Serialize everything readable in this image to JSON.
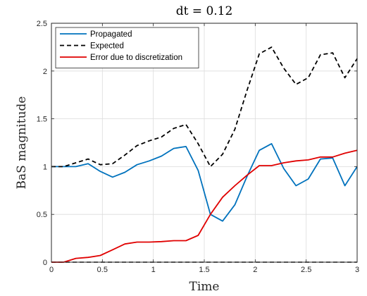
{
  "chart_data": {
    "type": "line",
    "title": "dt = 0.12",
    "xlabel": "Time",
    "ylabel": "BaS magnitude",
    "xlim": [
      0,
      3
    ],
    "ylim": [
      0,
      2.5
    ],
    "xticks": [
      0,
      0.5,
      1,
      1.5,
      2,
      2.5,
      3
    ],
    "xtick_labels": [
      "0",
      "0.5",
      "1",
      "1.5",
      "2",
      "2.5",
      "3"
    ],
    "yticks": [
      0,
      0.5,
      1,
      1.5,
      2,
      2.5
    ],
    "ytick_labels": [
      "0",
      "0.5",
      "1",
      "1.5",
      "2",
      "2.5"
    ],
    "grid": true,
    "legend_position": "top-left",
    "series": [
      {
        "name": "Propagated",
        "color": "#0072BD",
        "style": "solid",
        "x": [
          0,
          0.12,
          0.24,
          0.36,
          0.48,
          0.6,
          0.72,
          0.84,
          0.96,
          1.08,
          1.2,
          1.32,
          1.44,
          1.56,
          1.68,
          1.8,
          1.92,
          2.04,
          2.16,
          2.28,
          2.4,
          2.52,
          2.64,
          2.76,
          2.88,
          3.0
        ],
        "y": [
          1.0,
          1.0,
          1.0,
          1.03,
          0.95,
          0.89,
          0.94,
          1.02,
          1.06,
          1.11,
          1.19,
          1.21,
          0.96,
          0.5,
          0.43,
          0.6,
          0.9,
          1.17,
          1.24,
          0.98,
          0.8,
          0.87,
          1.08,
          1.09,
          0.8,
          1.0
        ]
      },
      {
        "name": "Expected",
        "color": "#000000",
        "style": "dashed",
        "x": [
          0,
          0.12,
          0.24,
          0.36,
          0.48,
          0.6,
          0.72,
          0.84,
          0.96,
          1.08,
          1.2,
          1.32,
          1.44,
          1.56,
          1.68,
          1.8,
          1.92,
          2.04,
          2.16,
          2.28,
          2.4,
          2.52,
          2.64,
          2.76,
          2.88,
          3.0
        ],
        "y": [
          1.0,
          1.0,
          1.04,
          1.08,
          1.02,
          1.03,
          1.12,
          1.22,
          1.27,
          1.31,
          1.4,
          1.44,
          1.24,
          1.0,
          1.13,
          1.39,
          1.8,
          2.18,
          2.25,
          2.03,
          1.86,
          1.93,
          2.17,
          2.19,
          1.93,
          2.13
        ]
      },
      {
        "name": "Error due to discretization",
        "color": "#E00000",
        "style": "solid",
        "x": [
          0,
          0.12,
          0.24,
          0.36,
          0.48,
          0.6,
          0.72,
          0.84,
          0.96,
          1.08,
          1.2,
          1.32,
          1.44,
          1.56,
          1.68,
          1.8,
          1.92,
          2.04,
          2.16,
          2.28,
          2.4,
          2.52,
          2.64,
          2.76,
          2.88,
          3.0
        ],
        "y": [
          0.0,
          0.0,
          0.04,
          0.05,
          0.07,
          0.13,
          0.19,
          0.21,
          0.21,
          0.215,
          0.225,
          0.225,
          0.28,
          0.5,
          0.68,
          0.8,
          0.91,
          1.01,
          1.01,
          1.04,
          1.06,
          1.07,
          1.1,
          1.1,
          1.14,
          1.17
        ]
      }
    ]
  }
}
